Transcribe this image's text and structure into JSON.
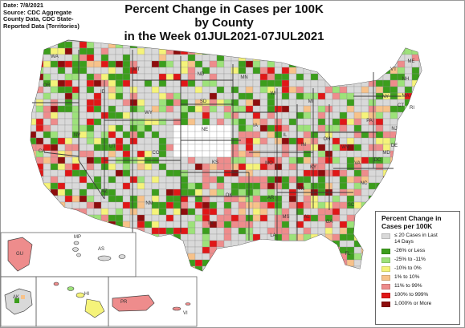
{
  "source": {
    "lines": [
      "Date: 7/8/2021",
      "Source: CDC Aggregate",
      "County Data, CDC State-",
      "Reported Data (Territories)"
    ]
  },
  "title": {
    "line1": "Percent Change in Cases per 100K by County",
    "line2": "in the Week 01JUL2021-07JUL2021"
  },
  "state_labels": [
    "WA",
    "OR",
    "CA",
    "NV",
    "ID",
    "MT",
    "WY",
    "UT",
    "AZ",
    "CO",
    "NM",
    "ND",
    "SD",
    "NE",
    "KS",
    "OK",
    "TX",
    "MN",
    "IA",
    "MO",
    "AR",
    "LA",
    "WI",
    "IL",
    "MS",
    "AL",
    "MI",
    "IN",
    "TN",
    "GA",
    "FL",
    "OH",
    "KY",
    "WV",
    "VA",
    "NC",
    "SC",
    "PA",
    "NY",
    "VT",
    "ME",
    "NH",
    "MA",
    "RI",
    "CT",
    "NJ",
    "DE",
    "MD",
    "DC",
    "HI",
    "AK"
  ],
  "territory_labels": [
    "GU",
    "MP",
    "AS",
    "PR",
    "VI"
  ],
  "legend": {
    "title_lines": [
      "Percent Change in",
      "Cases per 100K"
    ],
    "items": [
      {
        "label_lines": [
          "≤ 20 Cases in Last",
          "14 Days"
        ],
        "color": "#d9d9d9"
      },
      {
        "label_lines": [
          "-26% or Less"
        ],
        "color": "#3c9e1c"
      },
      {
        "label_lines": [
          "-25% to -11%"
        ],
        "color": "#9de27a"
      },
      {
        "label_lines": [
          "-10% to 0%"
        ],
        "color": "#f5f37a"
      },
      {
        "label_lines": [
          "1% to 10%"
        ],
        "color": "#f7c28a"
      },
      {
        "label_lines": [
          "11% to 99%"
        ],
        "color": "#ee8c8c"
      },
      {
        "label_lines": [
          "100% to 999%"
        ],
        "color": "#e01717"
      },
      {
        "label_lines": [
          "1,000% or More"
        ],
        "color": "#8e0d0d"
      }
    ]
  },
  "colors": {
    "no_data": "#ffffff",
    "land": "#d9d9d9",
    "border": "#555555"
  }
}
